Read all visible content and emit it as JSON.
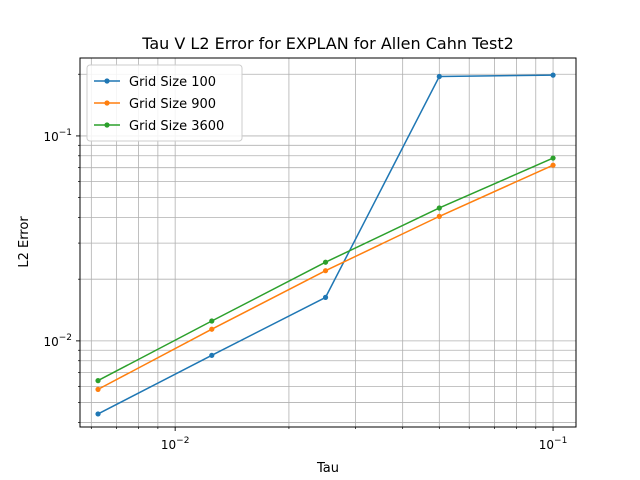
{
  "chart_data": {
    "type": "line",
    "title": "Tau V L2 Error for EXPLAN for Allen Cahn Test2",
    "xlabel": "Tau",
    "ylabel": "L2 Error",
    "xscale": "log",
    "yscale": "log",
    "xlim": [
      0.0056,
      0.115
    ],
    "ylim": [
      0.0038,
      0.24
    ],
    "grid": "both-major-minor",
    "legend_position": "top-left",
    "x": [
      0.00625,
      0.0125,
      0.025,
      0.05,
      0.1
    ],
    "x_ticks": [
      {
        "value": 0.01,
        "base": "10",
        "exp": "−2"
      },
      {
        "value": 0.1,
        "base": "10",
        "exp": "−1"
      }
    ],
    "y_ticks": [
      {
        "value": 0.01,
        "base": "10",
        "exp": "−2"
      },
      {
        "value": 0.1,
        "base": "10",
        "exp": "−1"
      }
    ],
    "series": [
      {
        "name": "Grid Size 100",
        "color": "#1f77b4",
        "values": [
          0.0044,
          0.0085,
          0.0163,
          0.195,
          0.198
        ]
      },
      {
        "name": "Grid Size 900",
        "color": "#ff7f0e",
        "values": [
          0.0058,
          0.0114,
          0.022,
          0.0405,
          0.072
        ]
      },
      {
        "name": "Grid Size 3600",
        "color": "#2ca02c",
        "values": [
          0.0064,
          0.0125,
          0.0242,
          0.0445,
          0.078
        ]
      }
    ]
  }
}
